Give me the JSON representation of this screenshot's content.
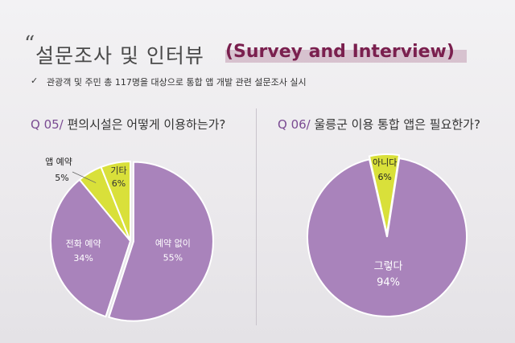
{
  "header": {
    "quote_mark": "“",
    "title_ko": "설문조사 및 인터뷰",
    "title_en": "(Survey and Interview)",
    "bullet": "✓",
    "subtitle": "관광객 및 주민 총 117명을 대상으로 통합 앱 개발 관련 설문조사 실시"
  },
  "colors": {
    "purple": "#a983bb",
    "yellow": "#d9e03a",
    "title_accent": "#7a1f4e"
  },
  "chart_data": [
    {
      "type": "pie",
      "title_prefix": "Q 05/",
      "title": "편의시설은 어떻게 이용하는가?",
      "slices": [
        {
          "label": "예약 없이",
          "value": 55,
          "value_label": "55%",
          "color": "#a983bb"
        },
        {
          "label": "전화 예약",
          "value": 34,
          "value_label": "34%",
          "color": "#a983bb"
        },
        {
          "label": "앱 예약",
          "value": 5,
          "value_label": "5%",
          "color": "#d9e03a"
        },
        {
          "label": "기타",
          "value": 6,
          "value_label": "6%",
          "color": "#d9e03a"
        }
      ]
    },
    {
      "type": "pie",
      "title_prefix": "Q 06/",
      "title": "울릉군 이용 통합 앱은 필요한가?",
      "slices": [
        {
          "label": "그렇다",
          "value": 94,
          "value_label": "94%",
          "color": "#a983bb"
        },
        {
          "label": "아니다",
          "value": 6,
          "value_label": "6%",
          "color": "#d9e03a"
        }
      ]
    }
  ]
}
